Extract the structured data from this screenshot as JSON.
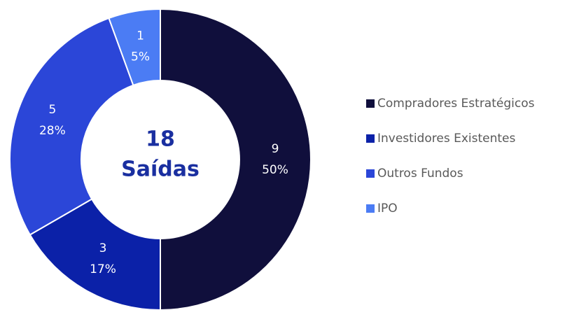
{
  "chart_data": {
    "type": "donut",
    "center_value": 18,
    "center_label": "Saídas",
    "categories": [
      "Compradores Estratégicos",
      "Investidores Existentes",
      "Outros Fundos",
      "IPO"
    ],
    "values": [
      9,
      3,
      5,
      1
    ],
    "percent_labels": [
      "50%",
      "17%",
      "28%",
      "5%"
    ],
    "colors": [
      "#100f3c",
      "#0b21a8",
      "#2b46d8",
      "#4b7cf4"
    ],
    "legend": "right"
  }
}
